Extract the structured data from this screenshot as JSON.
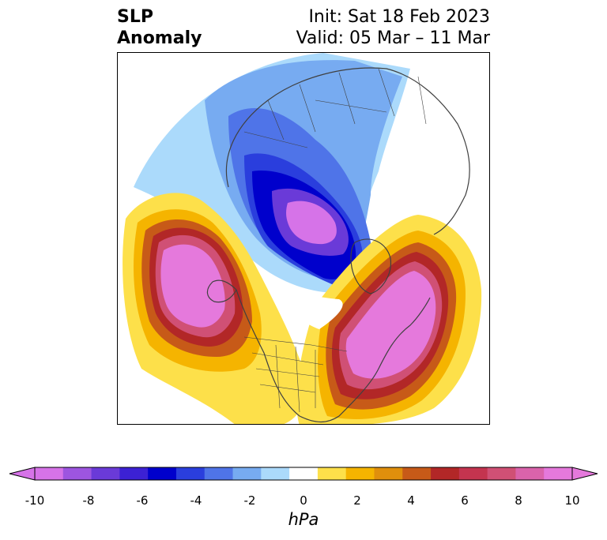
{
  "header": {
    "variable_line1": "SLP",
    "variable_line2": "Anomaly",
    "init": "Init: Sat 18 Feb 2023",
    "valid": "Valid: 05 Mar – 11 Mar"
  },
  "colorbar": {
    "units": "hPa",
    "ticks": [
      "-10",
      "-8",
      "-6",
      "-4",
      "-2",
      "0",
      "2",
      "4",
      "6",
      "8",
      "10"
    ],
    "extend": "both",
    "levels": [
      -10,
      -9,
      -8,
      -7,
      -6,
      -5,
      -4,
      -3,
      -2,
      -1,
      1,
      2,
      3,
      4,
      5,
      6,
      7,
      8,
      9,
      10
    ],
    "colors": [
      "#d673e8",
      "#9d55e0",
      "#6a3ad8",
      "#3c21d4",
      "#0000cc",
      "#2a3edd",
      "#4f74e8",
      "#77abf1",
      "#abdafb",
      "#ffffff",
      "#fde04a",
      "#f5b400",
      "#e08f0c",
      "#c75a18",
      "#b22727",
      "#c4344f",
      "#d05075",
      "#da63ab",
      "#e579dc"
    ],
    "under_color": "#d673e8",
    "over_color": "#e579dc"
  },
  "map": {
    "projection": "north-polar-stereographic",
    "features": [
      "coastlines",
      "country-borders",
      "us-state-borders"
    ],
    "anomaly_centers": [
      {
        "name": "north-pacific-high",
        "value_hpa": 10
      },
      {
        "name": "north-atlantic-high",
        "value_hpa": 10
      },
      {
        "name": "arctic-low",
        "value_hpa": -10
      }
    ]
  }
}
